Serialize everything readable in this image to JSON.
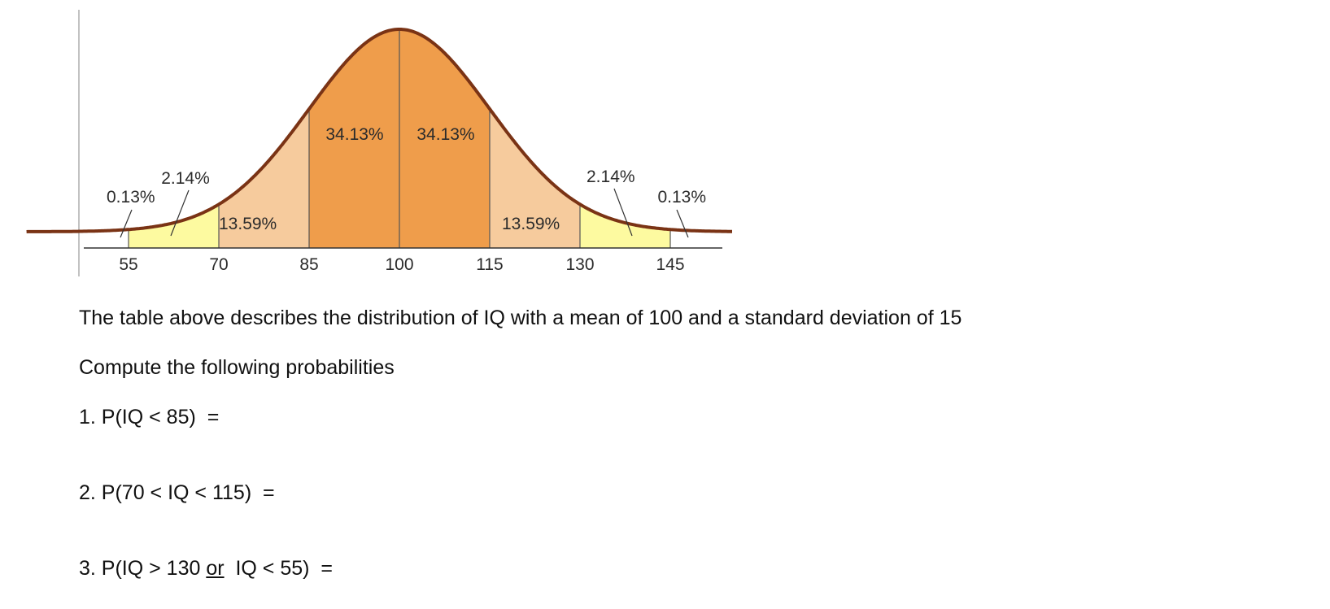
{
  "chart_data": {
    "type": "area",
    "x_ticks": [
      55,
      70,
      85,
      100,
      115,
      130,
      145
    ],
    "mean": 100,
    "sd": 15,
    "regions": [
      {
        "from": 55,
        "to": 70,
        "percent": "2.14%",
        "color": "#fdfaa0"
      },
      {
        "from": 70,
        "to": 85,
        "percent": "13.59%",
        "color": "#f6cb9d"
      },
      {
        "from": 85,
        "to": 100,
        "percent": "34.13%",
        "color": "#ef9d4b"
      },
      {
        "from": 100,
        "to": 115,
        "percent": "34.13%",
        "color": "#ef9d4b"
      },
      {
        "from": 115,
        "to": 130,
        "percent": "13.59%",
        "color": "#f6cb9d"
      },
      {
        "from": 130,
        "to": 145,
        "percent": "2.14%",
        "color": "#fdfaa0"
      }
    ],
    "tails": [
      {
        "side": "left",
        "percent": "0.13%"
      },
      {
        "side": "right",
        "percent": "0.13%"
      }
    ],
    "curve_color": "#7a3315"
  },
  "text": {
    "description": "The table above describes the distribution of IQ with a mean of 100 and a standard deviation of 15",
    "instruction": "Compute the following probabilities",
    "q1": "1. P(IQ < 85)  =",
    "q2": "2. P(70 < IQ < 115)  =",
    "q3_part1": "3. P(IQ > 130 ",
    "q3_or": "or",
    "q3_part2": "  IQ < 55)  ="
  }
}
